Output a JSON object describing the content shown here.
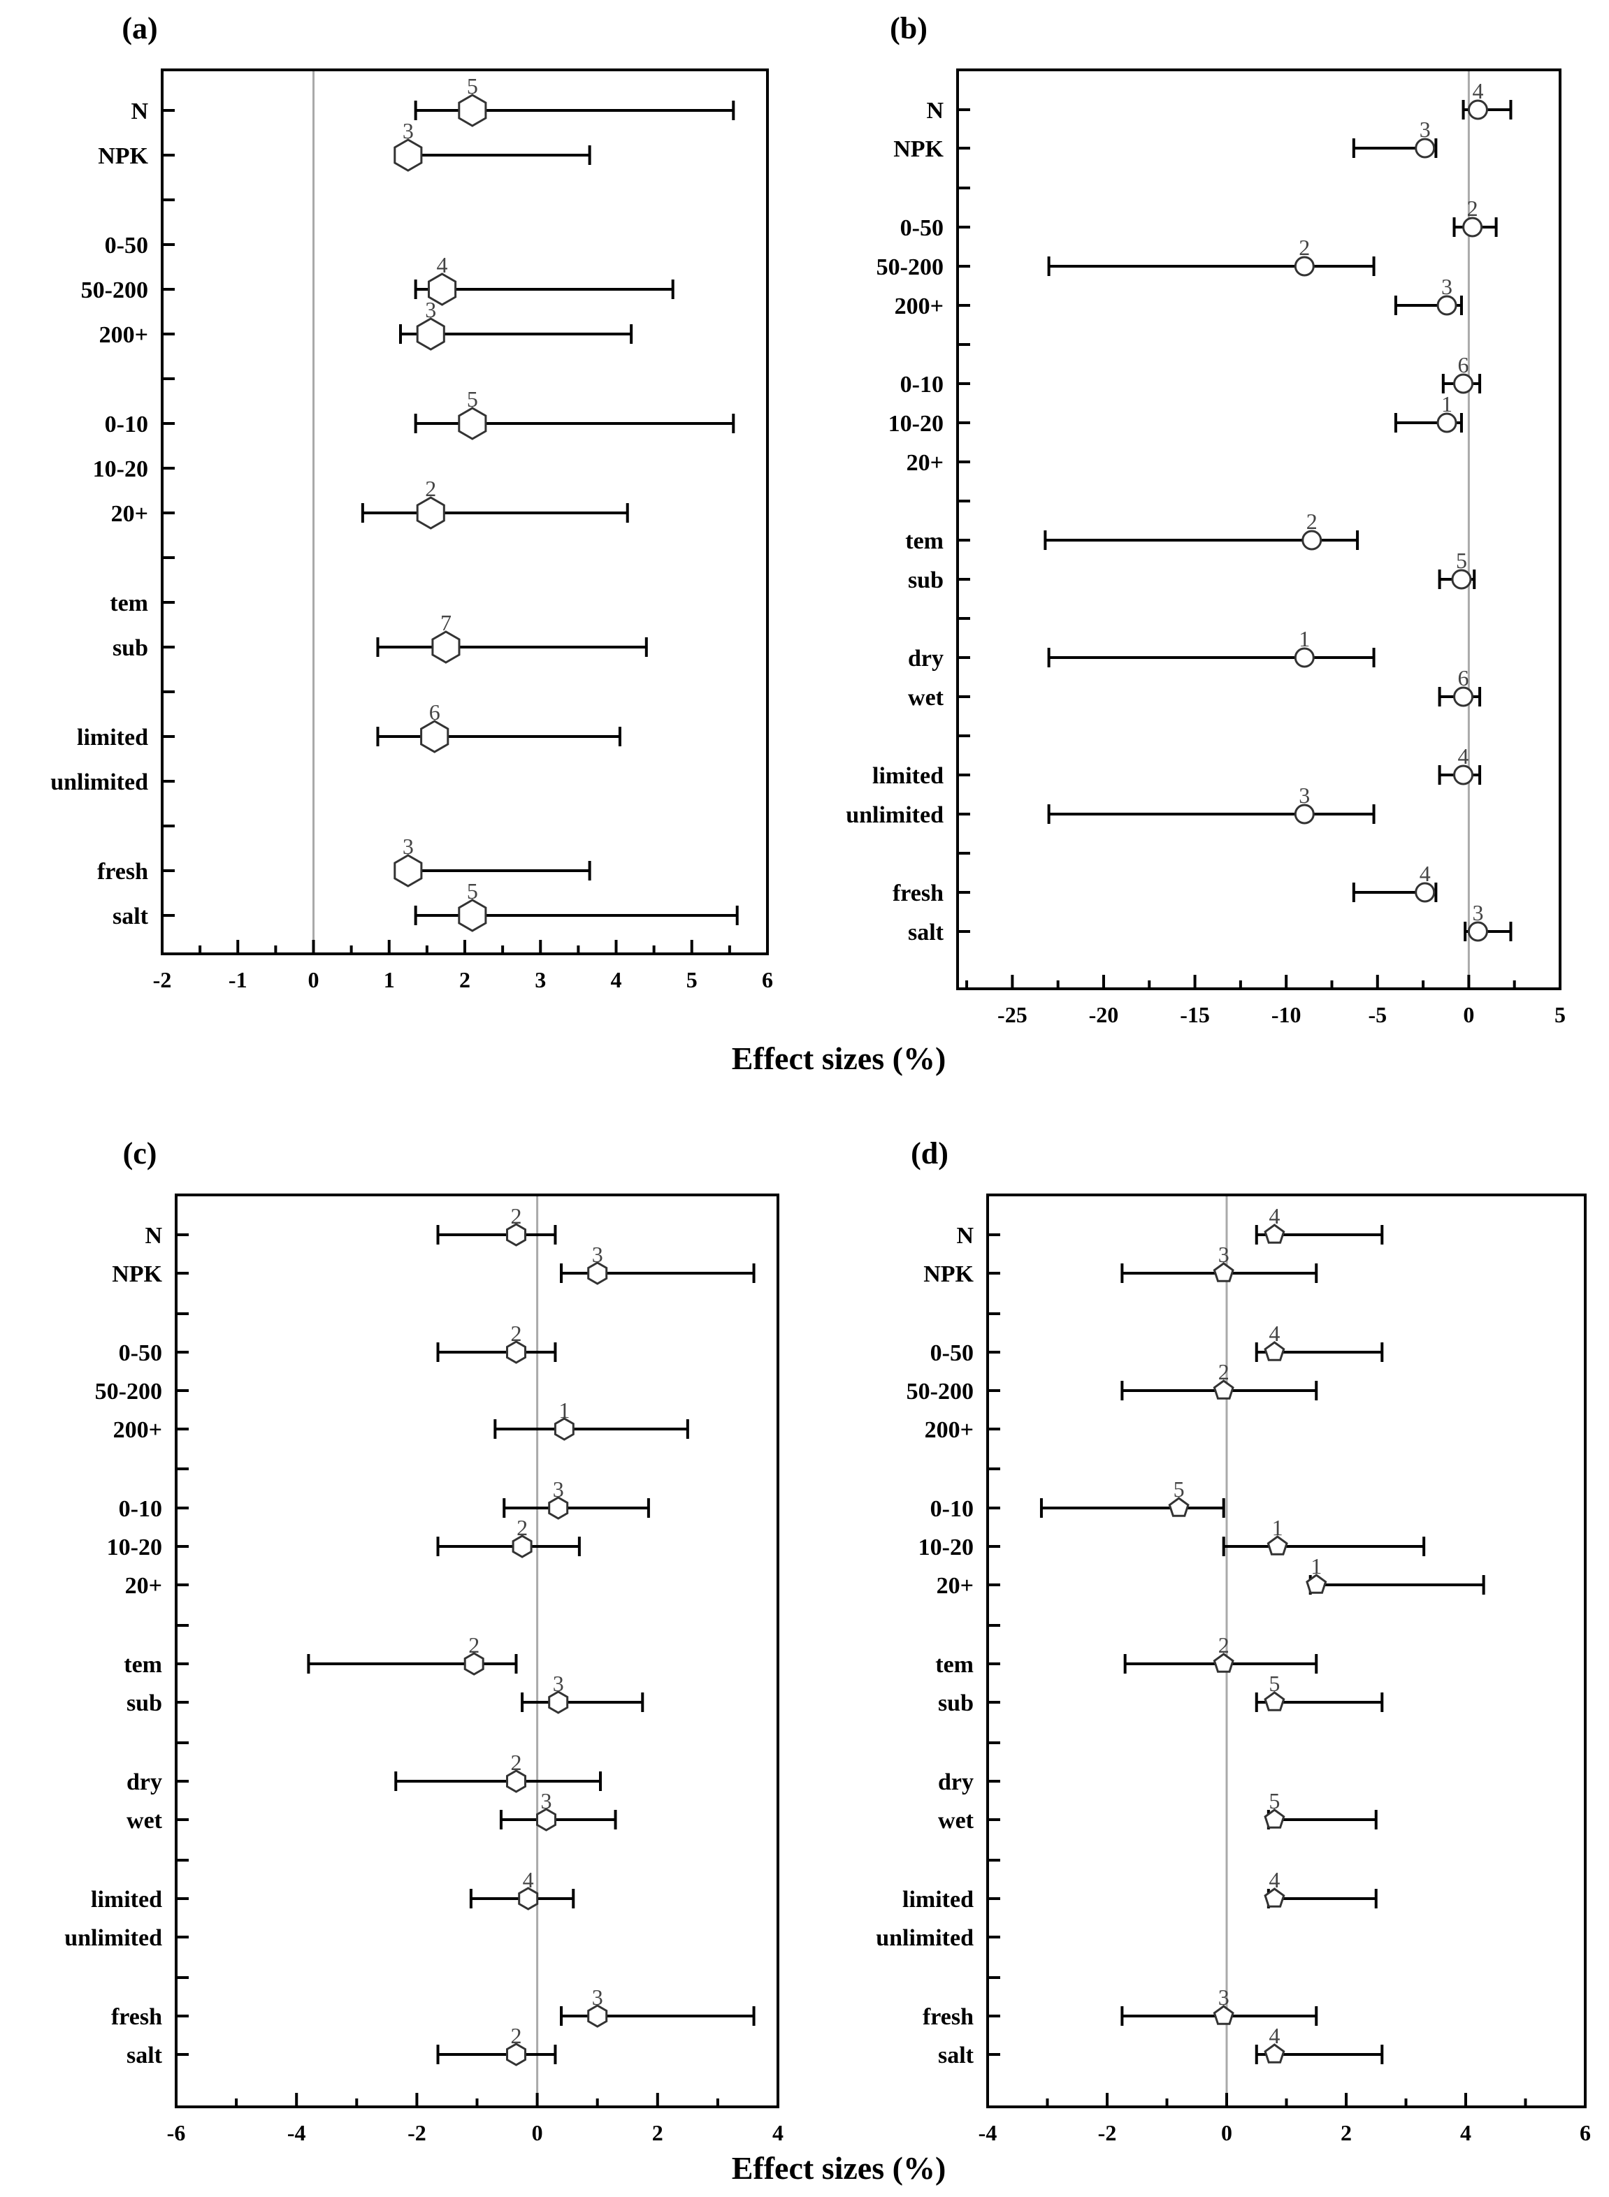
{
  "chart_data": [
    {
      "type": "forest",
      "panel_label": "(a)",
      "categories": [
        "N",
        "NPK",
        "0-50",
        "50-200",
        "200+",
        "0-10",
        "10-20",
        "20+",
        "tem",
        "sub",
        "limited",
        "unlimited",
        "fresh",
        "salt"
      ],
      "points": [
        {
          "cat": "N",
          "mean": 2.1,
          "lo": 1.35,
          "hi": 5.55,
          "n": "5"
        },
        {
          "cat": "NPK",
          "mean": 1.25,
          "lo": 1.15,
          "hi": 3.65,
          "n": "3"
        },
        {
          "cat": "50-200",
          "mean": 1.7,
          "lo": 1.35,
          "hi": 4.75,
          "n": "4"
        },
        {
          "cat": "200+",
          "mean": 1.55,
          "lo": 1.15,
          "hi": 4.2,
          "n": "3"
        },
        {
          "cat": "0-10",
          "mean": 2.1,
          "lo": 1.35,
          "hi": 5.55,
          "n": "5"
        },
        {
          "cat": "20+",
          "mean": 1.55,
          "lo": 0.65,
          "hi": 4.15,
          "n": "2"
        },
        {
          "cat": "sub",
          "mean": 1.75,
          "lo": 0.85,
          "hi": 4.4,
          "n": "7"
        },
        {
          "cat": "limited",
          "mean": 1.6,
          "lo": 0.85,
          "hi": 4.05,
          "n": "6"
        },
        {
          "cat": "fresh",
          "mean": 1.25,
          "lo": 1.15,
          "hi": 3.65,
          "n": "3"
        },
        {
          "cat": "salt",
          "mean": 2.1,
          "lo": 1.35,
          "hi": 5.6,
          "n": "5"
        }
      ],
      "xlim": [
        -2,
        6
      ],
      "major_ticks": [
        -2,
        -1,
        0,
        1,
        2,
        3,
        4,
        5,
        6
      ],
      "tick_labels": [
        "-2",
        "-1",
        "0",
        "1",
        "2",
        "3",
        "4",
        "5",
        "6"
      ],
      "zero_line": 0,
      "xlabel": "Effect sizes (%)",
      "marker": "hexagon"
    },
    {
      "type": "forest",
      "panel_label": "(b)",
      "categories": [
        "N",
        "NPK",
        "0-50",
        "50-200",
        "200+",
        "0-10",
        "10-20",
        "20+",
        "tem",
        "sub",
        "dry",
        "wet",
        "limited",
        "unlimited",
        "fresh",
        "salt"
      ],
      "points": [
        {
          "cat": "N",
          "mean": 0.5,
          "lo": -0.3,
          "hi": 2.3,
          "n": "4"
        },
        {
          "cat": "NPK",
          "mean": -2.4,
          "lo": -6.3,
          "hi": -1.8,
          "n": "3"
        },
        {
          "cat": "0-50",
          "mean": 0.2,
          "lo": -0.8,
          "hi": 1.5,
          "n": "2"
        },
        {
          "cat": "50-200",
          "mean": -9,
          "lo": -23,
          "hi": -5.2,
          "n": "2"
        },
        {
          "cat": "200+",
          "mean": -1.2,
          "lo": -4,
          "hi": -0.4,
          "n": "3"
        },
        {
          "cat": "0-10",
          "mean": -0.3,
          "lo": -1.4,
          "hi": 0.6,
          "n": "6"
        },
        {
          "cat": "10-20",
          "mean": -1.2,
          "lo": -4,
          "hi": -0.4,
          "n": "1"
        },
        {
          "cat": "tem",
          "mean": -8.6,
          "lo": -23.2,
          "hi": -6.1,
          "n": "2"
        },
        {
          "cat": "sub",
          "mean": -0.4,
          "lo": -1.6,
          "hi": 0.3,
          "n": "5"
        },
        {
          "cat": "dry",
          "mean": -9,
          "lo": -23,
          "hi": -5.2,
          "n": "1"
        },
        {
          "cat": "wet",
          "mean": -0.3,
          "lo": -1.6,
          "hi": 0.6,
          "n": "6"
        },
        {
          "cat": "limited",
          "mean": -0.3,
          "lo": -1.6,
          "hi": 0.6,
          "n": "4"
        },
        {
          "cat": "unlimited",
          "mean": -9,
          "lo": -23,
          "hi": -5.2,
          "n": "3"
        },
        {
          "cat": "fresh",
          "mean": -2.4,
          "lo": -6.3,
          "hi": -1.8,
          "n": "4"
        },
        {
          "cat": "salt",
          "mean": 0.5,
          "lo": -0.2,
          "hi": 2.3,
          "n": "3"
        }
      ],
      "xlim": [
        -28,
        5
      ],
      "major_ticks": [
        -25,
        -20,
        -15,
        -10,
        -5,
        0,
        5
      ],
      "tick_labels": [
        "-25",
        "-20",
        "-15",
        "-10",
        "-5",
        "0",
        "5"
      ],
      "zero_line": 0,
      "xlabel": "Effect sizes (%)",
      "marker": "circle"
    },
    {
      "type": "forest",
      "panel_label": "(c)",
      "categories": [
        "N",
        "NPK",
        "0-50",
        "50-200",
        "200+",
        "0-10",
        "10-20",
        "20+",
        "tem",
        "sub",
        "dry",
        "wet",
        "limited",
        "unlimited",
        "fresh",
        "salt"
      ],
      "points": [
        {
          "cat": "N",
          "mean": -0.35,
          "lo": -1.65,
          "hi": 0.3,
          "n": "2"
        },
        {
          "cat": "NPK",
          "mean": 1,
          "lo": 0.4,
          "hi": 3.6,
          "n": "3"
        },
        {
          "cat": "0-50",
          "mean": -0.35,
          "lo": -1.65,
          "hi": 0.3,
          "n": "2"
        },
        {
          "cat": "200+",
          "mean": 0.45,
          "lo": -0.7,
          "hi": 2.5,
          "n": "1"
        },
        {
          "cat": "0-10",
          "mean": 0.35,
          "lo": -0.55,
          "hi": 1.85,
          "n": "3"
        },
        {
          "cat": "10-20",
          "mean": -0.25,
          "lo": -1.65,
          "hi": 0.7,
          "n": "2"
        },
        {
          "cat": "tem",
          "mean": -1.05,
          "lo": -3.8,
          "hi": -0.35,
          "n": "2"
        },
        {
          "cat": "sub",
          "mean": 0.35,
          "lo": -0.25,
          "hi": 1.75,
          "n": "3"
        },
        {
          "cat": "dry",
          "mean": -0.35,
          "lo": -2.35,
          "hi": 1.05,
          "n": "2"
        },
        {
          "cat": "wet",
          "mean": 0.15,
          "lo": -0.6,
          "hi": 1.3,
          "n": "3"
        },
        {
          "cat": "limited",
          "mean": -0.15,
          "lo": -1.1,
          "hi": 0.6,
          "n": "4"
        },
        {
          "cat": "fresh",
          "mean": 1,
          "lo": 0.4,
          "hi": 3.6,
          "n": "3"
        },
        {
          "cat": "salt",
          "mean": -0.35,
          "lo": -1.65,
          "hi": 0.3,
          "n": "2"
        }
      ],
      "xlim": [
        -6,
        4
      ],
      "major_ticks": [
        -6,
        -4,
        -2,
        0,
        2,
        4
      ],
      "tick_labels": [
        "-6",
        "-4",
        "-2",
        "0",
        "2",
        "4"
      ],
      "zero_line": 0,
      "xlabel": "Effect sizes (%)",
      "marker": "hexagon"
    },
    {
      "type": "forest",
      "panel_label": "(d)",
      "categories": [
        "N",
        "NPK",
        "0-50",
        "50-200",
        "200+",
        "0-10",
        "10-20",
        "20+",
        "tem",
        "sub",
        "dry",
        "wet",
        "limited",
        "unlimited",
        "fresh",
        "salt"
      ],
      "points": [
        {
          "cat": "N",
          "mean": 0.8,
          "lo": 0.5,
          "hi": 2.6,
          "n": "4"
        },
        {
          "cat": "NPK",
          "mean": -0.05,
          "lo": -1.75,
          "hi": 1.5,
          "n": "3"
        },
        {
          "cat": "0-50",
          "mean": 0.8,
          "lo": 0.5,
          "hi": 2.6,
          "n": "4"
        },
        {
          "cat": "50-200",
          "mean": -0.05,
          "lo": -1.75,
          "hi": 1.5,
          "n": "2"
        },
        {
          "cat": "0-10",
          "mean": -0.8,
          "lo": -3.1,
          "hi": -0.05,
          "n": "5"
        },
        {
          "cat": "10-20",
          "mean": 0.85,
          "lo": -0.05,
          "hi": 3.3,
          "n": "1"
        },
        {
          "cat": "20+",
          "mean": 1.5,
          "lo": 1.4,
          "hi": 4.3,
          "n": "1"
        },
        {
          "cat": "tem",
          "mean": -0.05,
          "lo": -1.7,
          "hi": 1.5,
          "n": "2"
        },
        {
          "cat": "sub",
          "mean": 0.8,
          "lo": 0.5,
          "hi": 2.6,
          "n": "5"
        },
        {
          "cat": "wet",
          "mean": 0.8,
          "lo": 0.7,
          "hi": 2.5,
          "n": "5"
        },
        {
          "cat": "limited",
          "mean": 0.8,
          "lo": 0.7,
          "hi": 2.5,
          "n": "4"
        },
        {
          "cat": "fresh",
          "mean": -0.05,
          "lo": -1.75,
          "hi": 1.5,
          "n": "3"
        },
        {
          "cat": "salt",
          "mean": 0.8,
          "lo": 0.5,
          "hi": 2.6,
          "n": "4"
        }
      ],
      "xlim": [
        -4,
        6
      ],
      "major_ticks": [
        -4,
        -2,
        0,
        2,
        4,
        6
      ],
      "tick_labels": [
        "-4",
        "-2",
        "0",
        "2",
        "4",
        "6"
      ],
      "zero_line": 0,
      "xlabel": "Effect sizes (%)",
      "marker": "pentagon"
    }
  ],
  "figure_xlabels": [
    "Effect sizes (%)",
    "Effect sizes (%)"
  ],
  "colors": {
    "axis": "#000000",
    "zero_line": "#aaaaaa",
    "n_label": "#444444",
    "marker_fill": "#ffffff"
  }
}
